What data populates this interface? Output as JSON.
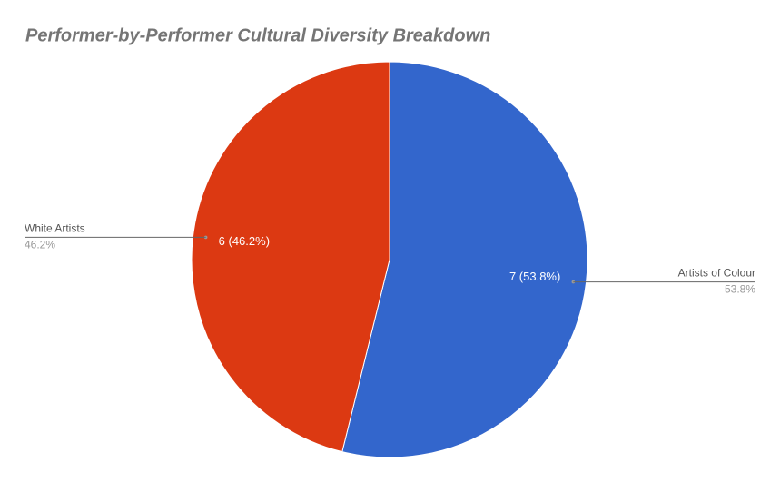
{
  "chart_data": {
    "type": "pie",
    "title": "Performer-by-Performer Cultural Diversity Breakdown",
    "categories": [
      "Artists of Colour",
      "White Artists"
    ],
    "values": [
      7,
      6
    ],
    "value_labels": [
      "7 (53.8%)",
      "6 (46.2%)"
    ],
    "percent_labels": [
      "53.8%",
      "46.2%"
    ],
    "colors": [
      "#3366cc",
      "#dc3912"
    ]
  }
}
